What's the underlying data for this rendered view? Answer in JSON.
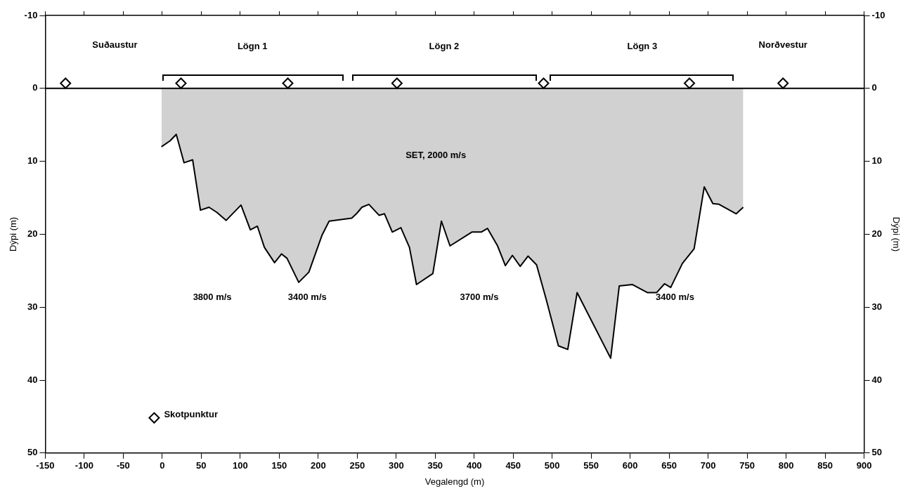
{
  "chart_data": {
    "type": "area",
    "xlabel": "Vegalengd (m)",
    "ylabel": "Dýpi (m)",
    "y2label": "Dýpi (m)",
    "xlim": [
      -150,
      900
    ],
    "xticks": [
      -150,
      -100,
      -50,
      0,
      50,
      100,
      150,
      200,
      250,
      300,
      350,
      400,
      450,
      500,
      550,
      600,
      650,
      700,
      750,
      800,
      850,
      900
    ],
    "ylim": [
      50,
      -10
    ],
    "yticks": [
      -10,
      0,
      10,
      20,
      30,
      40,
      50
    ],
    "y2lim": [
      50,
      -10
    ],
    "y2ticks": [
      -10,
      0,
      10,
      20,
      30,
      40,
      50
    ],
    "grid": false,
    "legend": "bottom left",
    "series": [
      {
        "color": "#000000",
        "x": [
          -1,
          10,
          18,
          28,
          39,
          49,
          60,
          70,
          82,
          101,
          113,
          122,
          131,
          144,
          153,
          160,
          175,
          188,
          205,
          214,
          243,
          249,
          256,
          265,
          278,
          285,
          295,
          306,
          317,
          326,
          347,
          358,
          369,
          397,
          409,
          417,
          430,
          440,
          449,
          459,
          469,
          480,
          492,
          508,
          520,
          532,
          575,
          586,
          603,
          622,
          634,
          644,
          652,
          667,
          682,
          695,
          706,
          714,
          736,
          745
        ],
        "values": [
          8.0,
          7.2,
          6.3,
          10.2,
          9.8,
          16.7,
          16.3,
          17.0,
          18.1,
          16.0,
          19.4,
          18.9,
          21.8,
          23.9,
          22.7,
          23.3,
          26.6,
          25.2,
          20.1,
          18.2,
          17.8,
          17.2,
          16.3,
          15.9,
          17.4,
          17.2,
          19.7,
          19.1,
          21.8,
          26.9,
          25.4,
          18.2,
          21.6,
          19.7,
          19.7,
          19.2,
          21.6,
          24.3,
          22.9,
          24.4,
          23.0,
          24.2,
          28.8,
          35.3,
          35.8,
          28.0,
          37.0,
          27.1,
          26.9,
          28.0,
          28.0,
          26.8,
          27.3,
          24.0,
          22.0,
          13.5,
          15.8,
          15.9,
          17.2,
          16.3
        ]
      },
      {
        "type": "scatter",
        "name": "Skotpunktur",
        "color": "#000000",
        "marker": "diamond",
        "x": [
          -124,
          24,
          161,
          301,
          489,
          676,
          796
        ],
        "values": [
          -0.7,
          -0.7,
          -0.7,
          -0.7,
          -0.7,
          -0.7,
          -0.7
        ]
      }
    ],
    "ref_lines": [
      {
        "axis": "y",
        "value": 0,
        "color": "#000000"
      }
    ],
    "annotations": [
      "Suðaustur",
      "Norðvestur",
      "Lögn 1",
      "Lögn 2",
      "Lögn 3",
      "SET, 2000 m/s",
      "3800 m/s",
      "3400 m/s",
      "3700 m/s",
      "3400 m/s"
    ]
  }
}
